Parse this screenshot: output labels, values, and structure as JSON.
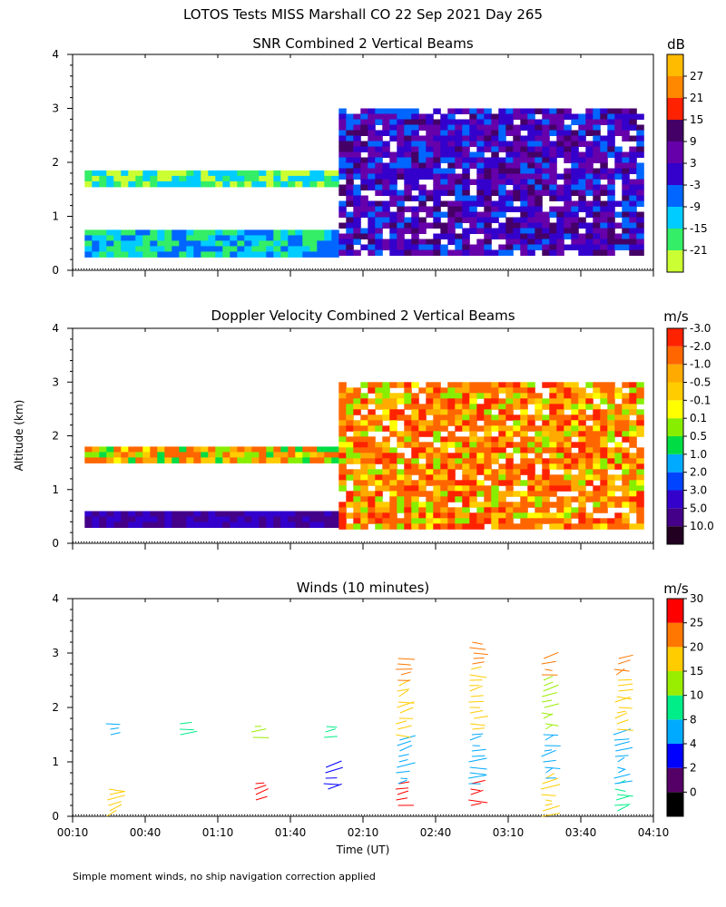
{
  "figure": {
    "title": "LOTOS Tests MISS Marshall CO  22 Sep 2021 Day 265",
    "ylabel": "Altitude (km)",
    "xlabel": "Time (UT)",
    "footnote": "Simple moment winds, no ship navigation correction applied"
  },
  "chart_data": [
    {
      "type": "heatmap",
      "title": "SNR Combined 2 Vertical Beams",
      "ylim": [
        0,
        4
      ],
      "yticks": [
        "0",
        "1",
        "2",
        "3",
        "4"
      ],
      "colorbar": {
        "unit": "dB",
        "labels": [
          "-21",
          "-15",
          "-9",
          "-3",
          "3",
          "9",
          "15",
          "21",
          "27"
        ],
        "colors": [
          "#ccff33",
          "#33ee66",
          "#00ccff",
          "#0066ff",
          "#3300cc",
          "#6600aa",
          "#440066",
          "#ff2200",
          "#ff8800",
          "#ffbb00"
        ]
      },
      "layers": [
        {
          "alt_km": [
            0.3,
            0.75
          ],
          "time_ut": [
            "00:15",
            "02:00"
          ],
          "level_db": -12
        },
        {
          "alt_km": [
            1.55,
            1.85
          ],
          "time_ut": [
            "00:15",
            "02:00"
          ],
          "level_db": -18
        },
        {
          "alt_km": [
            0.3,
            3.0
          ],
          "time_ut": [
            "02:00",
            "04:05"
          ],
          "level_db": 3
        }
      ]
    },
    {
      "type": "heatmap",
      "title": "Doppler Velocity Combined 2 Vertical Beams",
      "ylim": [
        0,
        4
      ],
      "yticks": [
        "0",
        "1",
        "2",
        "3",
        "4"
      ],
      "colorbar": {
        "unit": "m/s",
        "labels": [
          "10.0",
          "5.0",
          "3.0",
          "2.0",
          "1.0",
          "0.5",
          "0.1",
          "-0.1",
          "-0.5",
          "-1.0",
          "-2.0",
          "-3.0"
        ],
        "colors": [
          "#220022",
          "#440088",
          "#3300cc",
          "#0044ff",
          "#00aaff",
          "#00dd44",
          "#88ee00",
          "#ffff00",
          "#ffcc00",
          "#ffaa00",
          "#ff6600",
          "#ff2200"
        ]
      },
      "layers": [
        {
          "alt_km": [
            0.3,
            0.6
          ],
          "time_ut": [
            "00:15",
            "02:00"
          ],
          "velocity_ms": 5.0
        },
        {
          "alt_km": [
            1.55,
            1.8
          ],
          "time_ut": [
            "00:15",
            "02:00"
          ],
          "velocity_ms": -0.5
        },
        {
          "alt_km": [
            0.3,
            3.0
          ],
          "time_ut": [
            "02:00",
            "04:05"
          ],
          "velocity_ms": -1.0
        }
      ]
    },
    {
      "type": "scatter",
      "title": "Winds (10 minutes)",
      "ylim": [
        0,
        4
      ],
      "yticks": [
        "0",
        "1",
        "2",
        "3",
        "4"
      ],
      "colorbar": {
        "unit": "m/s",
        "labels": [
          "0",
          "2",
          "4",
          "8",
          "10",
          "15",
          "20",
          "25",
          "30"
        ],
        "colors": [
          "#000000",
          "#550066",
          "#0000ff",
          "#00aaff",
          "#00ee88",
          "#99ee00",
          "#ffcc00",
          "#ff7700",
          "#ff0000"
        ]
      },
      "profiles": [
        {
          "time_ut": "00:25",
          "segments": [
            {
              "alt_km": [
                0.0,
                0.5
              ],
              "speed_ms": 15
            },
            {
              "alt_km": [
                1.5,
                1.75
              ],
              "speed_ms": 4
            }
          ]
        },
        {
          "time_ut": "00:55",
          "segments": [
            {
              "alt_km": [
                1.5,
                1.8
              ],
              "speed_ms": 8
            }
          ]
        },
        {
          "time_ut": "01:25",
          "segments": [
            {
              "alt_km": [
                0.3,
                0.6
              ],
              "speed_ms": 25
            },
            {
              "alt_km": [
                1.45,
                1.75
              ],
              "speed_ms": 10
            }
          ]
        },
        {
          "time_ut": "01:55",
          "segments": [
            {
              "alt_km": [
                0.5,
                0.9
              ],
              "speed_ms": 3
            },
            {
              "alt_km": [
                1.45,
                1.7
              ],
              "speed_ms": 8
            }
          ]
        },
        {
          "time_ut": "02:25",
          "segments": [
            {
              "alt_km": [
                0.2,
                0.6
              ],
              "speed_ms": 25
            },
            {
              "alt_km": [
                0.6,
                1.5
              ],
              "speed_ms": 4
            },
            {
              "alt_km": [
                1.5,
                2.5
              ],
              "speed_ms": 15
            },
            {
              "alt_km": [
                2.5,
                3.0
              ],
              "speed_ms": 20
            }
          ]
        },
        {
          "time_ut": "02:55",
          "segments": [
            {
              "alt_km": [
                0.2,
                0.6
              ],
              "speed_ms": 25
            },
            {
              "alt_km": [
                0.6,
                1.6
              ],
              "speed_ms": 4
            },
            {
              "alt_km": [
                1.6,
                2.8
              ],
              "speed_ms": 15
            },
            {
              "alt_km": [
                2.8,
                3.3
              ],
              "speed_ms": 20
            }
          ]
        },
        {
          "time_ut": "03:25",
          "segments": [
            {
              "alt_km": [
                0.0,
                0.7
              ],
              "speed_ms": 15
            },
            {
              "alt_km": [
                0.7,
                1.6
              ],
              "speed_ms": 4
            },
            {
              "alt_km": [
                1.6,
                2.6
              ],
              "speed_ms": 10
            },
            {
              "alt_km": [
                2.6,
                3.0
              ],
              "speed_ms": 20
            }
          ]
        },
        {
          "time_ut": "03:55",
          "segments": [
            {
              "alt_km": [
                0.1,
                0.6
              ],
              "speed_ms": 8
            },
            {
              "alt_km": [
                0.6,
                1.6
              ],
              "speed_ms": 4
            },
            {
              "alt_km": [
                1.6,
                2.6
              ],
              "speed_ms": 15
            },
            {
              "alt_km": [
                2.6,
                3.0
              ],
              "speed_ms": 20
            }
          ]
        }
      ]
    }
  ],
  "xaxis": {
    "ticks": [
      "00:10",
      "00:40",
      "01:10",
      "01:40",
      "02:10",
      "02:40",
      "03:10",
      "03:40",
      "04:10"
    ]
  }
}
